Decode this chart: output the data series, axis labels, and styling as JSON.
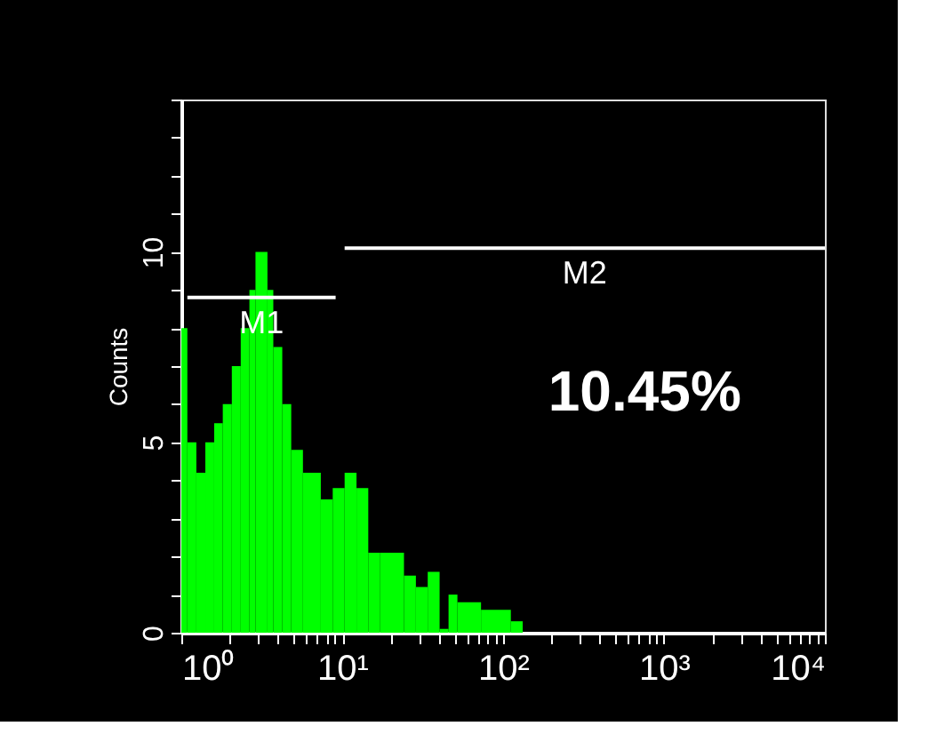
{
  "chart_data": {
    "type": "histogram",
    "ylabel": "Counts",
    "log": "x",
    "bins": [
      1,
      1.09,
      1.24,
      1.41,
      1.6,
      1.81,
      2.06,
      2.34,
      2.65,
      2.89,
      3.43,
      3.73,
      4.24,
      4.82,
      5.7,
      7.36,
      8.73,
      10.35,
      12.27,
      14.52,
      17.22,
      24.2,
      28.7,
      34.0,
      40.3,
      45.8,
      52.0,
      72.9,
      111.7,
      132.4
    ],
    "values": [
      8,
      5,
      4.2,
      5,
      5.5,
      6,
      7,
      8,
      9,
      10,
      9,
      7.5,
      6,
      4.8,
      4.2,
      3.5,
      3.8,
      4.2,
      3.8,
      2.1,
      2.1,
      1.5,
      1.2,
      1.6,
      0.1,
      1,
      0.8,
      0.6,
      0.3
    ],
    "color": "#00ff00",
    "series": [
      {
        "type": "line",
        "name": "M1",
        "color": "#ffffff",
        "x": [
          1.09,
          9.1
        ],
        "values": [
          8.8,
          8.8
        ]
      },
      {
        "type": "line",
        "name": "M2",
        "color": "#ffffff",
        "x": [
          10.35,
          10000
        ],
        "values": [
          10.1,
          10.1
        ]
      }
    ],
    "annotations": [
      "10.45%"
    ],
    "xlim": [
      1,
      10000
    ],
    "ylim": [
      0,
      14
    ],
    "xticks": [
      {
        "value": 1,
        "label": "10⁰"
      },
      {
        "value": 2,
        "label": null
      },
      {
        "value": 3,
        "label": null
      },
      {
        "value": 4,
        "label": null
      },
      {
        "value": 5,
        "label": null
      },
      {
        "value": 6,
        "label": null
      },
      {
        "value": 7,
        "label": null
      },
      {
        "value": 8,
        "label": null
      },
      {
        "value": 9,
        "label": null
      },
      {
        "value": 10,
        "label": "10¹"
      },
      {
        "value": 20,
        "label": null
      },
      {
        "value": 30,
        "label": null
      },
      {
        "value": 40,
        "label": null
      },
      {
        "value": 50,
        "label": null
      },
      {
        "value": 60,
        "label": null
      },
      {
        "value": 70,
        "label": null
      },
      {
        "value": 80,
        "label": null
      },
      {
        "value": 90,
        "label": null
      },
      {
        "value": 100,
        "label": "10²"
      },
      {
        "value": 200,
        "label": null
      },
      {
        "value": 300,
        "label": null
      },
      {
        "value": 400,
        "label": null
      },
      {
        "value": 500,
        "label": null
      },
      {
        "value": 600,
        "label": null
      },
      {
        "value": 700,
        "label": null
      },
      {
        "value": 800,
        "label": null
      },
      {
        "value": 900,
        "label": null
      },
      {
        "value": 1000,
        "label": "10³"
      },
      {
        "value": 2000,
        "label": null
      },
      {
        "value": 3000,
        "label": null
      },
      {
        "value": 4000,
        "label": null
      },
      {
        "value": 5000,
        "label": null
      },
      {
        "value": 6000,
        "label": null
      },
      {
        "value": 7000,
        "label": null
      },
      {
        "value": 8000,
        "label": null
      },
      {
        "value": 9000,
        "label": null
      },
      {
        "value": 10000,
        "label": "10⁴"
      }
    ],
    "yticks": [
      0,
      {
        "value": 1,
        "label": null
      },
      {
        "value": 2,
        "label": null
      },
      {
        "value": 3,
        "label": null
      },
      {
        "value": 4,
        "label": null
      },
      5,
      {
        "value": 6,
        "label": null
      },
      {
        "value": 7,
        "label": null
      },
      {
        "value": 8,
        "label": null
      },
      {
        "value": 9,
        "label": null
      },
      10,
      {
        "value": 11,
        "label": null
      },
      {
        "value": 12,
        "label": null
      },
      {
        "value": 13,
        "label": null
      },
      {
        "value": 14,
        "label": null
      }
    ],
    "grid": false
  }
}
